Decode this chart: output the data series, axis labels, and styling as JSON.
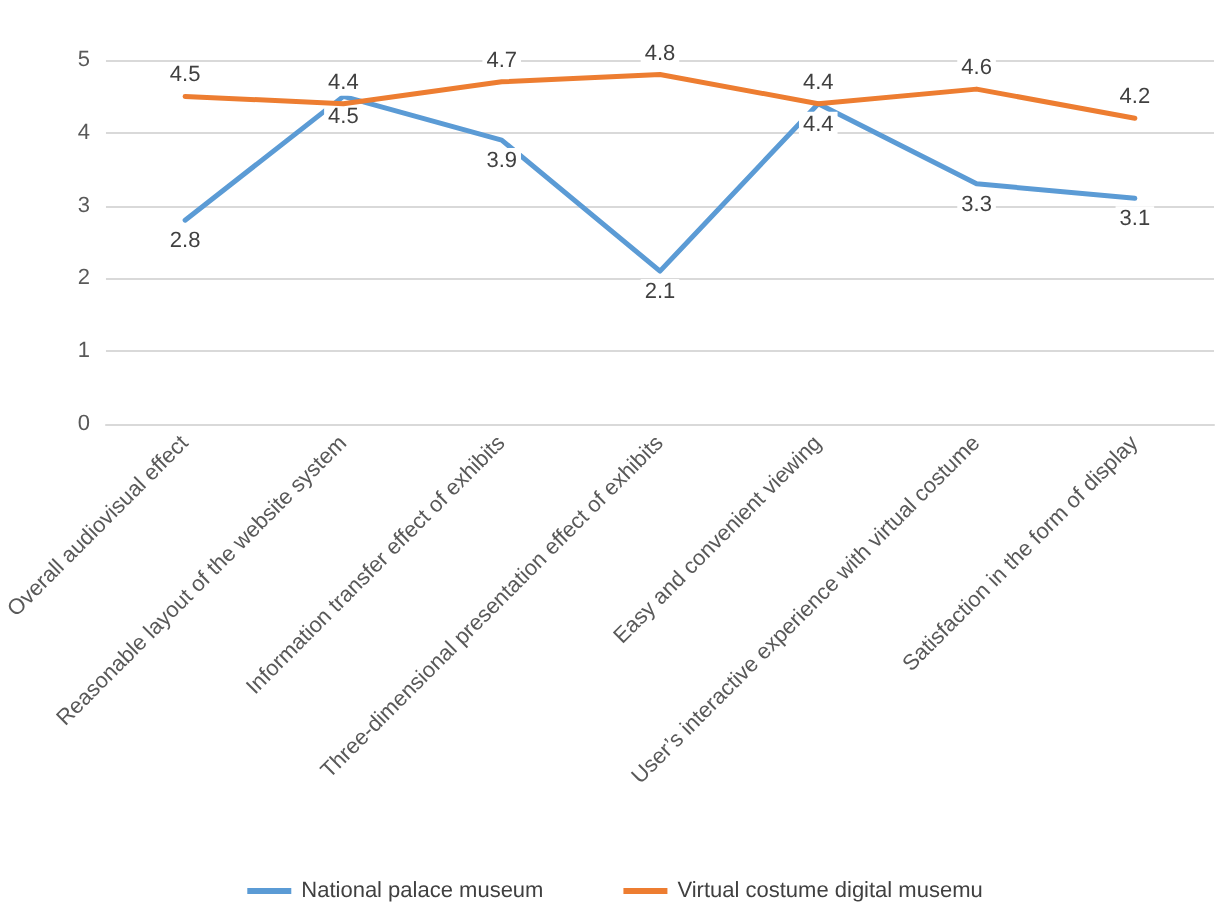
{
  "chart_data": {
    "type": "line",
    "categories": [
      "Overall audiovisual effect",
      "Reasonable layout of the website system",
      "Information transfer effect of exhibits",
      "Three-dimensional presentation effect of exhibits",
      "Easy and convenient viewing",
      "User’s interactive experience with virtual costume",
      "Satisfaction in the form of display"
    ],
    "series": [
      {
        "name": "National palace museum",
        "color": "#5b9bd5",
        "values": [
          2.8,
          4.5,
          3.9,
          2.1,
          4.4,
          3.3,
          3.1
        ]
      },
      {
        "name": "Virtual costume digital musemu",
        "color": "#ed7d31",
        "values": [
          4.5,
          4.4,
          4.7,
          4.8,
          4.4,
          4.6,
          4.2
        ]
      }
    ],
    "ylim": [
      0,
      5
    ],
    "yticks": [
      0,
      1,
      2,
      3,
      4,
      5
    ],
    "grid": "y",
    "legend": "bottom",
    "marker": "none",
    "line_style": "solid",
    "data_labels": true
  }
}
